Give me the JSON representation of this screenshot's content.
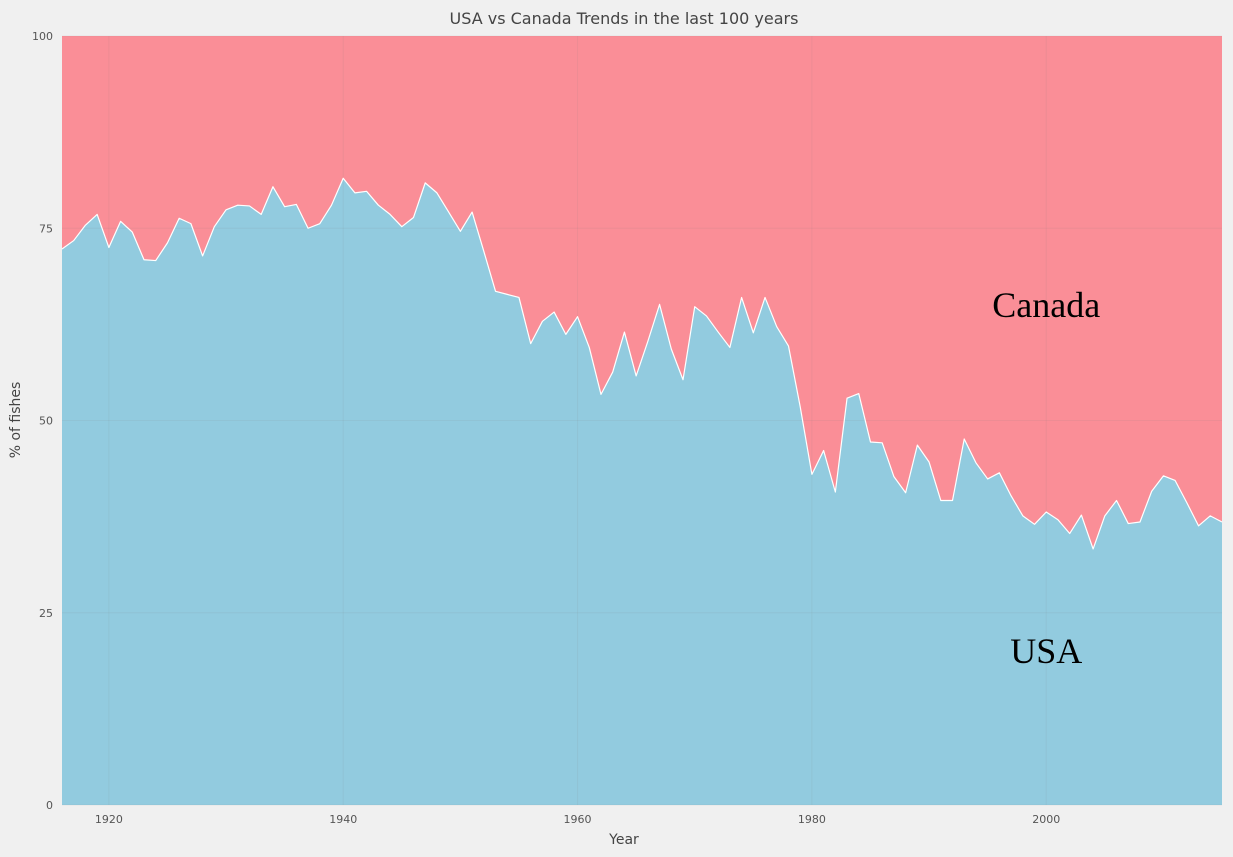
{
  "chart_data": {
    "type": "area",
    "title": "USA vs Canada Trends in the last 100 years",
    "xlabel": "Year",
    "ylabel": "% of fishes",
    "xlim": [
      1916,
      2015
    ],
    "ylim": [
      0,
      100
    ],
    "x_ticks": [
      1920,
      1940,
      1960,
      1980,
      2000
    ],
    "y_ticks": [
      0,
      25,
      50,
      75,
      100
    ],
    "grid": true,
    "stacked_percent": true,
    "x": [
      1916,
      1917,
      1918,
      1919,
      1920,
      1921,
      1922,
      1923,
      1924,
      1925,
      1926,
      1927,
      1928,
      1929,
      1930,
      1931,
      1932,
      1933,
      1934,
      1935,
      1936,
      1937,
      1938,
      1939,
      1940,
      1941,
      1942,
      1943,
      1944,
      1945,
      1946,
      1947,
      1948,
      1949,
      1950,
      1951,
      1952,
      1953,
      1954,
      1955,
      1956,
      1957,
      1958,
      1959,
      1960,
      1961,
      1962,
      1963,
      1964,
      1965,
      1966,
      1967,
      1968,
      1969,
      1970,
      1971,
      1972,
      1973,
      1974,
      1975,
      1976,
      1977,
      1978,
      1979,
      1980,
      1981,
      1982,
      1983,
      1984,
      1985,
      1986,
      1987,
      1988,
      1989,
      1990,
      1991,
      1992,
      1993,
      1994,
      1995,
      1996,
      1997,
      1998,
      1999,
      2000,
      2001,
      2002,
      2003,
      2004,
      2005,
      2006,
      2007,
      2008,
      2009,
      2010,
      2011,
      2012,
      2013,
      2014,
      2015
    ],
    "series": [
      {
        "name": "USA",
        "color": "#92cbdf",
        "values": [
          72.3,
          73.4,
          75.4,
          76.8,
          72.5,
          75.9,
          74.5,
          70.9,
          70.8,
          73.1,
          76.3,
          75.6,
          71.4,
          75.2,
          77.4,
          78.0,
          77.9,
          76.8,
          80.4,
          77.8,
          78.1,
          75.0,
          75.6,
          78.0,
          81.5,
          79.6,
          79.8,
          78.0,
          76.8,
          75.2,
          76.4,
          80.9,
          79.6,
          77.1,
          74.6,
          77.1,
          72.0,
          66.8,
          66.4,
          66.0,
          60.0,
          62.9,
          64.1,
          61.2,
          63.5,
          59.5,
          53.4,
          56.3,
          61.5,
          55.8,
          60.3,
          65.1,
          59.3,
          55.3,
          64.8,
          63.6,
          61.5,
          59.5,
          66.0,
          61.4,
          66.0,
          62.2,
          59.7,
          51.8,
          43.0,
          46.1,
          40.7,
          52.9,
          53.5,
          47.2,
          47.1,
          42.7,
          40.6,
          46.8,
          44.6,
          39.6,
          39.6,
          47.6,
          44.5,
          42.4,
          43.2,
          40.2,
          37.6,
          36.5,
          38.1,
          37.1,
          35.3,
          37.7,
          33.3,
          37.6,
          39.6,
          36.6,
          36.8,
          40.8,
          42.8,
          42.2,
          39.3,
          36.3,
          37.6,
          36.8
        ]
      },
      {
        "name": "Canada",
        "color": "#fa8e97"
      }
    ],
    "annotations": [
      {
        "text": "Canada",
        "x": 2000,
        "y": 65
      },
      {
        "text": "USA",
        "x": 2000,
        "y": 20
      }
    ]
  }
}
